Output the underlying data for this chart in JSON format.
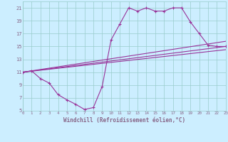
{
  "xlabel": "Windchill (Refroidissement éolien,°C)",
  "bg_color": "#cceeff",
  "grid_color": "#99cccc",
  "line_color": "#993399",
  "spine_color": "#886688",
  "xlim": [
    0,
    23
  ],
  "ylim": [
    5,
    22
  ],
  "xticks": [
    0,
    1,
    2,
    3,
    4,
    5,
    6,
    7,
    8,
    9,
    10,
    11,
    12,
    13,
    14,
    15,
    16,
    17,
    18,
    19,
    20,
    21,
    22,
    23
  ],
  "yticks": [
    5,
    7,
    9,
    11,
    13,
    15,
    17,
    19,
    21
  ],
  "main_curve": {
    "x": [
      0,
      1,
      2,
      3,
      4,
      5,
      6,
      7,
      8,
      9,
      10,
      11,
      12,
      13,
      14,
      15,
      16,
      17,
      18,
      19,
      20,
      21,
      22,
      23
    ],
    "y": [
      11,
      11.2,
      10.0,
      9.3,
      7.5,
      6.7,
      6.0,
      5.2,
      5.5,
      8.8,
      16.0,
      18.5,
      21.0,
      20.5,
      21.0,
      20.5,
      20.5,
      21.0,
      21.0,
      18.8,
      17.0,
      15.2,
      15.0,
      15.0
    ]
  },
  "linear_lines": [
    {
      "x": [
        0,
        23
      ],
      "y": [
        11,
        14.5
      ]
    },
    {
      "x": [
        0,
        23
      ],
      "y": [
        11,
        15.0
      ]
    },
    {
      "x": [
        0,
        23
      ],
      "y": [
        11,
        15.8
      ]
    }
  ]
}
